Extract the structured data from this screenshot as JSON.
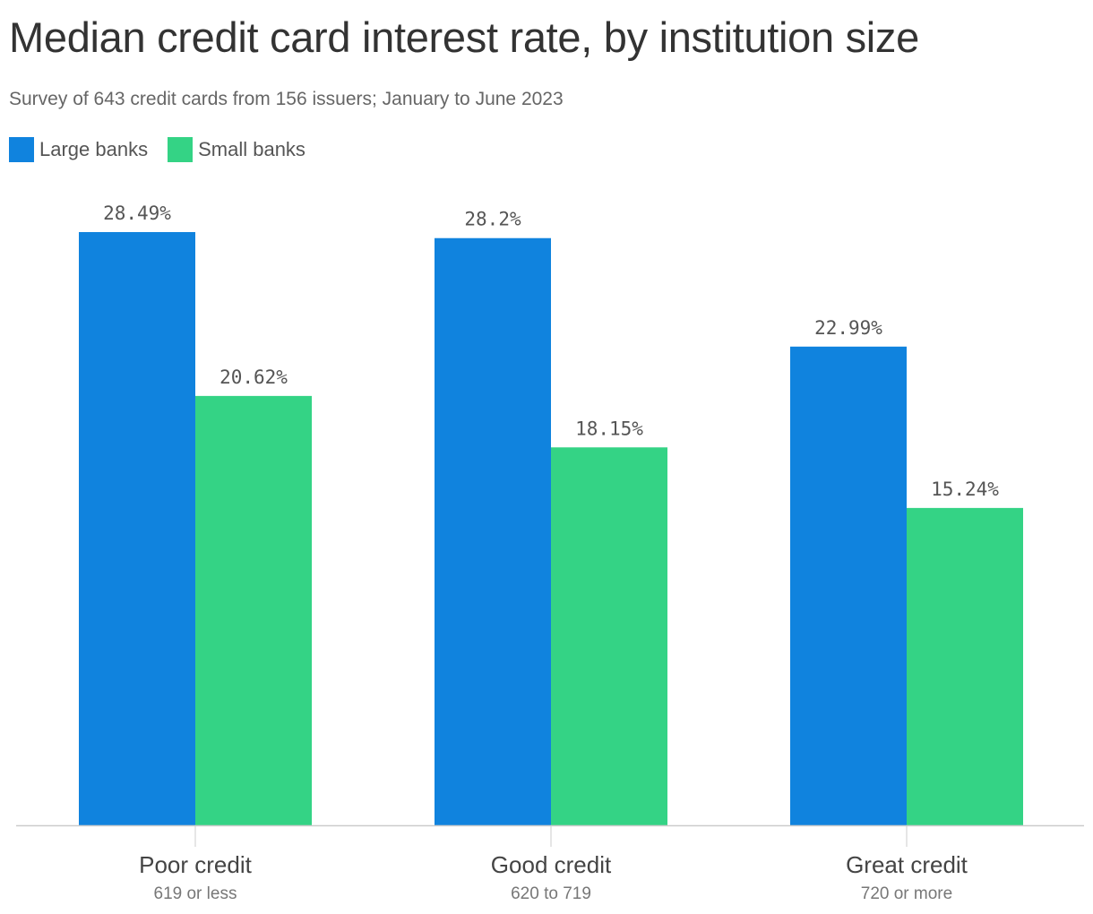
{
  "chart_data": {
    "type": "bar",
    "title": "Median credit card interest rate, by institution size",
    "subtitle": "Survey of 643 credit cards from 156 issuers; January to June 2023",
    "categories": [
      "Poor credit",
      "Good credit",
      "Great credit"
    ],
    "category_sublabels": [
      "619 or less",
      "620 to 719",
      "720 or more"
    ],
    "series": [
      {
        "name": "Large banks",
        "color": "#1083DE",
        "values": [
          28.49,
          28.2,
          22.99
        ],
        "labels": [
          "28.49%",
          "28.2%",
          "22.99%"
        ]
      },
      {
        "name": "Small banks",
        "color": "#34D385",
        "values": [
          20.62,
          18.15,
          15.24
        ],
        "labels": [
          "20.62%",
          "18.15%",
          "15.24%"
        ]
      }
    ],
    "xlabel": "",
    "ylabel": "",
    "ylim": [
      0,
      30
    ],
    "grid": false,
    "legend": "top-left"
  }
}
